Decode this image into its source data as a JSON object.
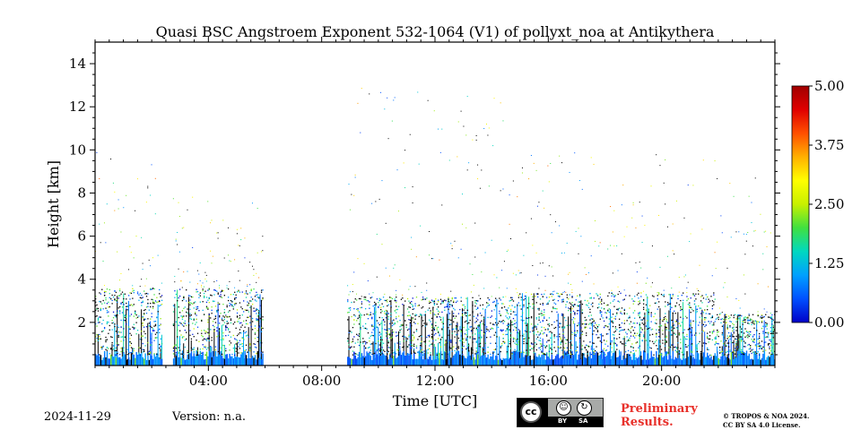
{
  "chart_data": {
    "type": "heatmap",
    "title": "Quasi BSC Angstroem Exponent 532-1064 (V1) of pollyxt_noa at Antikythera",
    "xlabel": "Time [UTC]",
    "ylabel": "Height [km]",
    "x_ticks": [
      "04:00",
      "08:00",
      "12:00",
      "16:00",
      "20:00"
    ],
    "x_tick_hours": [
      4,
      8,
      12,
      16,
      20
    ],
    "xlim_hours": [
      0,
      24
    ],
    "y_ticks": [
      "2",
      "4",
      "6",
      "8",
      "10",
      "12",
      "14"
    ],
    "y_tick_values": [
      2,
      4,
      6,
      8,
      10,
      12,
      14
    ],
    "ylim": [
      0,
      15
    ],
    "colorbar": {
      "range": [
        0,
        5
      ],
      "ticks": [
        "0.00",
        "1.25",
        "2.50",
        "3.75",
        "5.00"
      ],
      "tick_values": [
        0,
        1.25,
        2.5,
        3.75,
        5
      ],
      "colormap": "jet",
      "colors": [
        "#0000c8",
        "#0050ff",
        "#00a0ff",
        "#00d8c0",
        "#40e040",
        "#c8f000",
        "#ffff00",
        "#ffb000",
        "#ff5000",
        "#e00000",
        "#a00000"
      ]
    },
    "data_gaps_hours": [
      [
        2.35,
        2.75
      ],
      [
        5.9,
        8.9
      ]
    ],
    "segments": [
      {
        "start_h": 0.0,
        "end_h": 2.35,
        "surface_value": 0.8,
        "dense_top_km": 3.6,
        "sparse_top_km": 10.5
      },
      {
        "start_h": 2.75,
        "end_h": 5.9,
        "surface_value": 0.8,
        "dense_top_km": 3.6,
        "sparse_top_km": 8.0
      },
      {
        "start_h": 8.9,
        "end_h": 14.8,
        "surface_value": 0.7,
        "dense_top_km": 3.2,
        "sparse_top_km": 13.0
      },
      {
        "start_h": 14.8,
        "end_h": 21.9,
        "surface_value": 0.7,
        "dense_top_km": 3.4,
        "sparse_top_km": 10.0
      },
      {
        "start_h": 21.9,
        "end_h": 24.0,
        "surface_value": 0.8,
        "dense_top_km": 2.4,
        "sparse_top_km": 8.8
      }
    ]
  },
  "footer": {
    "date": "2024-11-29",
    "version": "Version: n.a.",
    "preliminary_line1": "Preliminary",
    "preliminary_line2": "Results.",
    "copyright_line1": "© TROPOS & NOA 2024.",
    "copyright_line2": "CC BY SA 4.0 License.",
    "license_badge": {
      "main": "cc",
      "by": "BY",
      "sa": "SA"
    }
  }
}
